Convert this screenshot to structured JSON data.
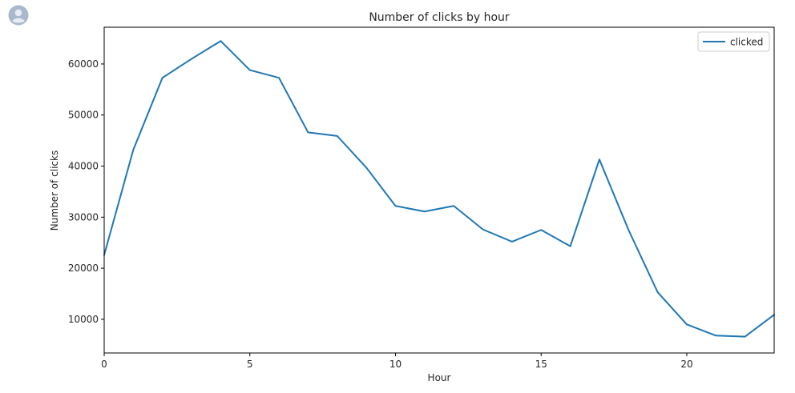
{
  "notebook": {
    "avatar_icon": "user-avatar-icon"
  },
  "chart_data": {
    "type": "line",
    "title": "Number of clicks by hour",
    "xlabel": "Hour",
    "ylabel": "Number of clicks",
    "x": [
      0,
      1,
      2,
      3,
      4,
      5,
      6,
      7,
      8,
      9,
      10,
      11,
      12,
      13,
      14,
      15,
      16,
      17,
      18,
      19,
      20,
      21,
      22,
      23
    ],
    "series": [
      {
        "name": "clicked",
        "color": "#1f77b4",
        "values": [
          22600,
          43200,
          57300,
          61000,
          64500,
          58800,
          57300,
          46600,
          45900,
          39700,
          32200,
          31100,
          32200,
          27600,
          25200,
          27500,
          24300,
          41300,
          27500,
          15300,
          9000,
          6800,
          6600,
          10900
        ]
      }
    ],
    "xlim": [
      0,
      23
    ],
    "ylim": [
      3400,
      67200
    ],
    "xticks": [
      "0",
      "5",
      "10",
      "15",
      "20"
    ],
    "yticks": [
      "10000",
      "20000",
      "30000",
      "40000",
      "50000",
      "60000"
    ],
    "grid": false,
    "legend": "top-right"
  }
}
